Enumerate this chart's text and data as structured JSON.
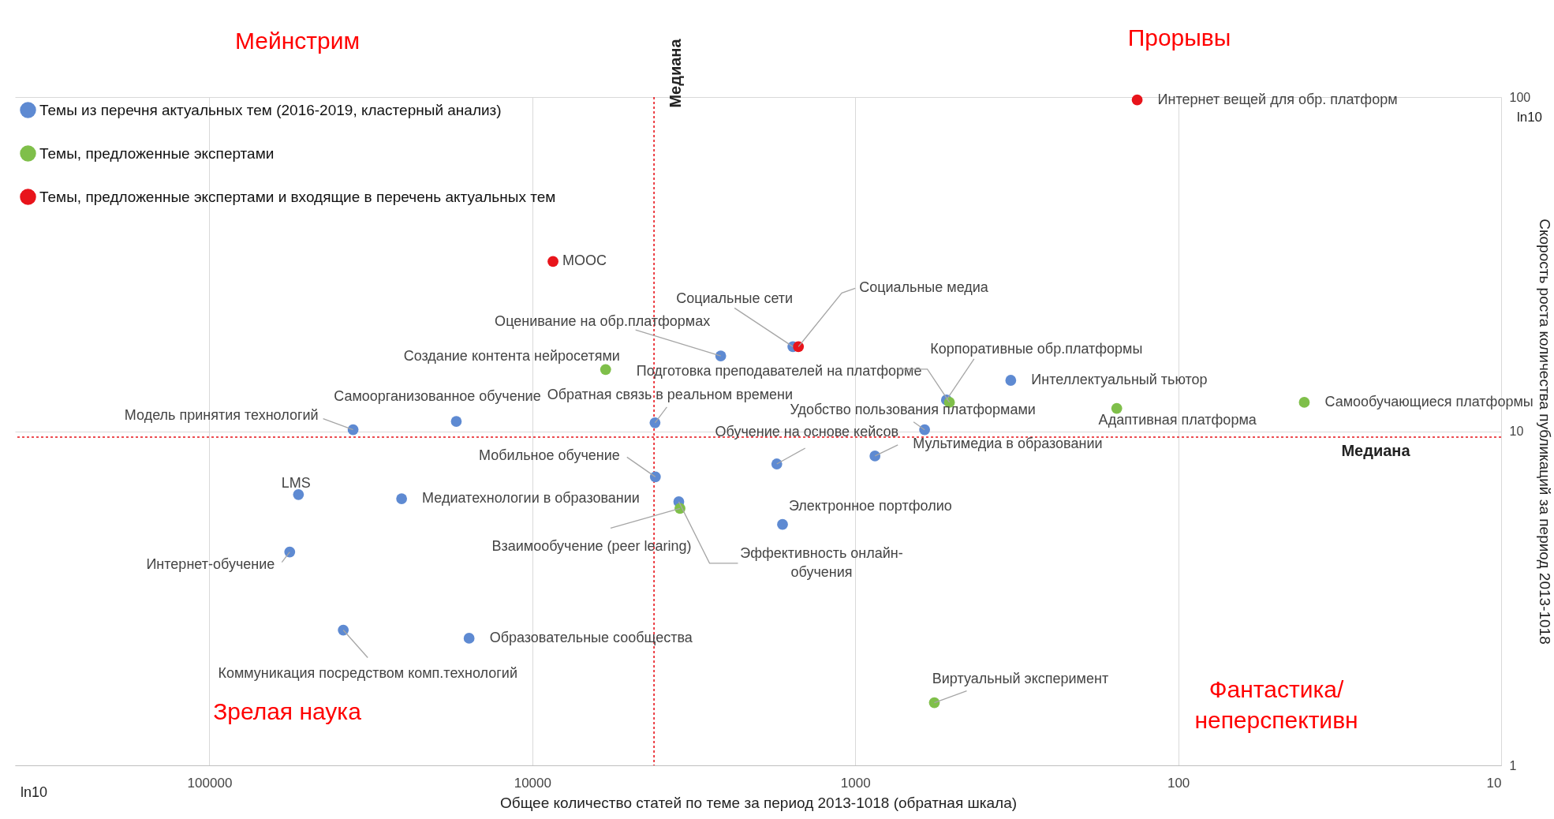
{
  "chart_data": {
    "type": "scatter",
    "xlabel": "Общее количество статей по теме за период 2013-1018 (обратная шкала)",
    "ylabel": "Скорость роста количества публикаций за период 2013-1018",
    "log": "xy",
    "xlim": [
      400000,
      10
    ],
    "xticks": [
      100000,
      10000,
      1000,
      100,
      10
    ],
    "ylim": [
      1,
      100
    ],
    "yticks": [
      1,
      10,
      100
    ],
    "grid": true,
    "legend": "top left",
    "marker": "circle",
    "series": [
      {
        "name": "Темы из перечня актуальных тем (2016-2019, кластерный анализ)",
        "color": "#5e8ad2",
        "x": [
          1560,
          2610,
          522,
          330,
          35900,
          17200,
          4170,
          610,
          4160,
          1750,
          869,
          53000,
          25400,
          3520,
          1680,
          56400,
          38500,
          15700
        ],
        "values": [
          17.9,
          16.8,
          12.4,
          14.2,
          10.1,
          10.7,
          10.6,
          10.1,
          7.3,
          7.98,
          8.43,
          6.46,
          6.28,
          6.15,
          5.26,
          4.35,
          2.54,
          2.4
        ]
      },
      {
        "name": "Темы, предложенные экспертами",
        "color": "#7fbf4a",
        "x": [
          5930,
          511,
          155,
          40.7,
          3490,
          569
        ],
        "values": [
          15.3,
          12.2,
          11.7,
          12.2,
          5.87,
          1.54
        ]
      },
      {
        "name": "Темы, предложенные экспертами и входящие в перечень актуальных тем",
        "color": "#e8141b",
        "x": [
          134,
          8630,
          1500
        ],
        "values": [
          98,
          32.2,
          17.9
        ]
      }
    ],
    "ref_lines": [
      {
        "axis": "x",
        "value": 4200,
        "label": "Медиана",
        "color": "#e8141b",
        "line_style": "dotted"
      },
      {
        "axis": "y",
        "value": 9.6,
        "label": "Медиана",
        "color": "#e8141b",
        "line_style": "dotted"
      }
    ],
    "annotations": [
      "Мейнстрим",
      "Прорывы",
      "Зрелая наука",
      "Фантастика/\nнеперспективн",
      "ln10",
      "ln10",
      {
        "text": "Социальные сети",
        "x": 1560,
        "y": 17.9
      },
      {
        "text": "Оценивание на обр.платформах",
        "x": 2610,
        "y": 16.8
      },
      {
        "text": "Корпоративные обр.платформы",
        "x": 522,
        "y": 12.4
      },
      {
        "text": "Интеллектуальный тьютор",
        "x": 330,
        "y": 14.2
      },
      {
        "text": "Модель принятия технологий",
        "x": 35900,
        "y": 10.1
      },
      {
        "text": "Самоорганизованное обучение",
        "x": 17200,
        "y": 10.7
      },
      {
        "text": "Обратная связь в реальном времени",
        "x": 4170,
        "y": 10.6
      },
      {
        "text": "Удобство пользования платформами",
        "x": 610,
        "y": 10.1
      },
      {
        "text": "Мобильное обучение",
        "x": 4160,
        "y": 7.3
      },
      {
        "text": "Обучение на основе кейсов",
        "x": 1750,
        "y": 7.98
      },
      {
        "text": "Мультимедиа в образовании",
        "x": 869,
        "y": 8.43
      },
      {
        "text": "LMS",
        "x": 53000,
        "y": 6.46
      },
      {
        "text": "Медиатехнологии в образовании",
        "x": 25400,
        "y": 6.28
      },
      {
        "text": "Эффективность онлайн-\nобучения",
        "x": 3520,
        "y": 6.15
      },
      {
        "text": "Электронное портфолио",
        "x": 1680,
        "y": 5.26
      },
      {
        "text": "Интернет-обучение",
        "x": 56400,
        "y": 4.35
      },
      {
        "text": "Коммуникация посредством комп.технологий",
        "x": 38500,
        "y": 2.54
      },
      {
        "text": "Образовательные сообщества",
        "x": 15700,
        "y": 2.4
      },
      {
        "text": "Создание контента нейросетями",
        "x": 5930,
        "y": 15.3
      },
      {
        "text": "Подготовка преподавателей на платформе",
        "x": 511,
        "y": 12.2
      },
      {
        "text": "Адаптивная платформа",
        "x": 155,
        "y": 11.7
      },
      {
        "text": "Самообучающиеся платформы",
        "x": 40.7,
        "y": 12.2
      },
      {
        "text": "Взаимообучение (peer learing)",
        "x": 3490,
        "y": 5.87
      },
      {
        "text": "Виртуальный эксперимент",
        "x": 569,
        "y": 1.54
      },
      {
        "text": "Интернет вещей для обр. платформ",
        "x": 134,
        "y": 98
      },
      {
        "text": "MOOC",
        "x": 8630,
        "y": 32.2
      },
      {
        "text": "Социальные медиа",
        "x": 1500,
        "y": 17.9
      }
    ]
  }
}
